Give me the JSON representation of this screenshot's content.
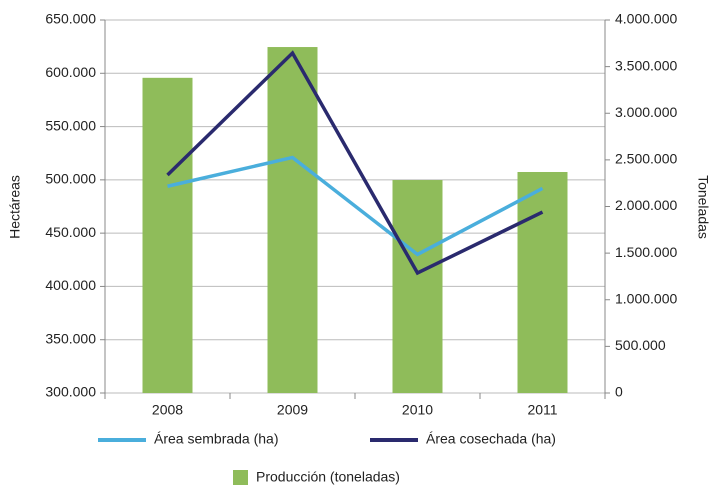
{
  "chart_data": {
    "type": "bar",
    "categories": [
      "2008",
      "2009",
      "2010",
      "2011"
    ],
    "ylabel": "Hectáreas",
    "y2label": "Toneladas",
    "ylim": [
      300000,
      650000
    ],
    "yticks": [
      {
        "value": 300000,
        "label": "300.000"
      },
      {
        "value": 350000,
        "label": "350.000"
      },
      {
        "value": 400000,
        "label": "400.000"
      },
      {
        "value": 450000,
        "label": "450.000"
      },
      {
        "value": 500000,
        "label": "500.000"
      },
      {
        "value": 550000,
        "label": "550.000"
      },
      {
        "value": 600000,
        "label": "600.000"
      },
      {
        "value": 650000,
        "label": "650.000"
      }
    ],
    "y2lim": [
      0,
      4000000
    ],
    "y2ticks": [
      0,
      {
        "value": 500000,
        "label": "500.000"
      },
      {
        "value": 1000000,
        "label": "1.000.000"
      },
      {
        "value": 1500000,
        "label": "1.500.000"
      },
      {
        "value": 2000000,
        "label": "2.000.000"
      },
      {
        "value": 2500000,
        "label": "2.500.000"
      },
      {
        "value": 3000000,
        "label": "3.000.000"
      },
      {
        "value": 3500000,
        "label": "3.500.000"
      },
      {
        "value": 4000000,
        "label": "4.000.000"
      }
    ],
    "grid": true,
    "series": [
      {
        "name": "Producción (toneladas)",
        "type": "bar",
        "axis": "y2",
        "color": "#8fbc5a",
        "values": [
          3380000,
          3710000,
          2284000,
          2370000
        ]
      },
      {
        "name": "Área sembrada (ha)",
        "type": "line",
        "color": "#4aaedc",
        "values": [
          494000,
          521000,
          430000,
          492000
        ]
      },
      {
        "name": "Área cosechada (ha)",
        "type": "line",
        "color": "#2a2a6e",
        "values": [
          504600,
          619000,
          412600,
          469800
        ]
      }
    ]
  }
}
